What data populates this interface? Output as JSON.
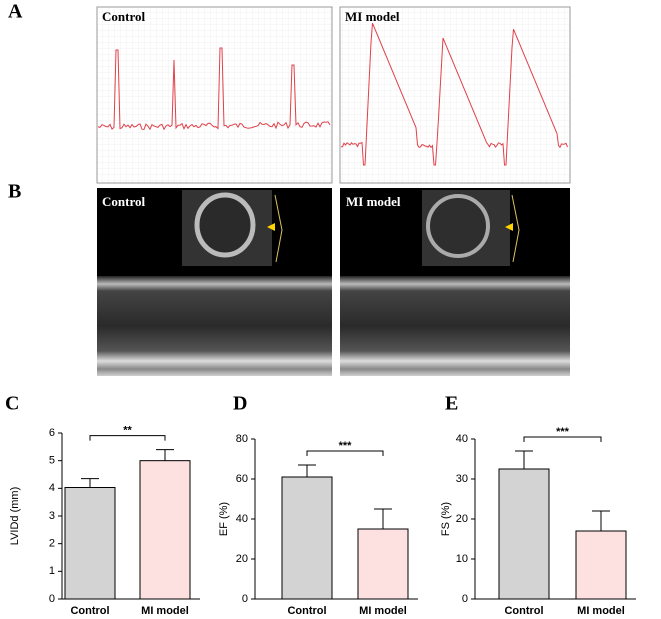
{
  "panels": {
    "a": {
      "letter": "A",
      "left": "Control",
      "right": "MI model"
    },
    "b": {
      "letter": "B",
      "left": "Control",
      "right": "MI model"
    }
  },
  "chart_data": [
    {
      "type": "bar",
      "panel": "C",
      "ylabel": "LVIDd (mm)",
      "categories": [
        "Control",
        "MI model"
      ],
      "values": [
        4.03,
        5.0
      ],
      "errors": [
        0.32,
        0.4
      ],
      "colors": [
        "#d3d3d3",
        "#fde0e0"
      ],
      "ylim": [
        0,
        6
      ],
      "yticks": [
        0,
        1,
        2,
        3,
        4,
        5,
        6
      ],
      "annotation": "**"
    },
    {
      "type": "bar",
      "panel": "D",
      "ylabel": "EF (%)",
      "categories": [
        "Control",
        "MI model"
      ],
      "values": [
        61,
        35
      ],
      "errors": [
        6,
        10
      ],
      "colors": [
        "#d3d3d3",
        "#fde0e0"
      ],
      "ylim": [
        0,
        80
      ],
      "yticks": [
        0,
        20,
        40,
        60,
        80
      ],
      "annotation": "***"
    },
    {
      "type": "bar",
      "panel": "E",
      "ylabel": "FS (%)",
      "categories": [
        "Control",
        "MI model"
      ],
      "values": [
        32.5,
        17
      ],
      "errors": [
        4.5,
        5
      ],
      "colors": [
        "#d3d3d3",
        "#fde0e0"
      ],
      "ylim": [
        0,
        40
      ],
      "yticks": [
        0,
        10,
        20,
        30,
        40
      ],
      "annotation": "***"
    }
  ]
}
